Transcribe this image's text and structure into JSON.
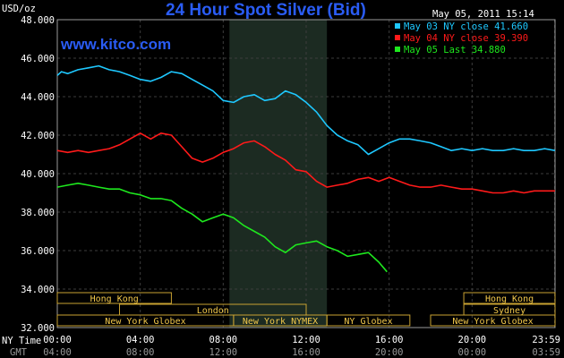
{
  "header": {
    "y_unit": "USD/oz",
    "title": "24 Hour Spot Silver (Bid)",
    "datetime": "May 05, 2011 15:14",
    "site": "www.kitco.com"
  },
  "legend": [
    {
      "label": "May 03 NY close 41.660",
      "color": "#1ec8ff"
    },
    {
      "label": "May 04 NY close 39.390",
      "color": "#ff1a1a"
    },
    {
      "label": "May 05 Last 34.880",
      "color": "#1ee81e"
    }
  ],
  "axis_captions": {
    "ny_time": "NY Time",
    "gmt": "GMT"
  },
  "markets": [
    {
      "label": "Hong Kong",
      "start": -0.5,
      "end": 5.5
    },
    {
      "label": "London",
      "start": 3.0,
      "end": 12.0
    },
    {
      "label": "New York Globex",
      "start": 0.0,
      "end": 8.5
    },
    {
      "label": "New York NYMEX",
      "start": 8.5,
      "end": 13.0
    },
    {
      "label": "NY Globex",
      "start": 13.0,
      "end": 17.0
    },
    {
      "label": "Hong Kong",
      "start": 19.6,
      "end": 24.0
    },
    {
      "label": "Sydney",
      "start": 19.6,
      "end": 24.0
    },
    {
      "label": "New York Globex",
      "start": 18.0,
      "end": 24.0
    }
  ],
  "chart_data": {
    "type": "line",
    "title": "24 Hour Spot Silver (Bid)",
    "ylabel": "USD/oz",
    "xlim": [
      0,
      24
    ],
    "ylim": [
      32,
      48
    ],
    "yticks": [
      "32.000",
      "34.000",
      "36.000",
      "38.000",
      "40.000",
      "42.000",
      "44.000",
      "46.000",
      "48.000"
    ],
    "xticks": [
      0,
      4,
      8,
      12,
      16,
      20,
      23.98
    ],
    "xtick_labels_ny": [
      "00:00",
      "04:00",
      "08:00",
      "12:00",
      "16:00",
      "20:00",
      "23:59"
    ],
    "xtick_labels_gmt": [
      "04:00",
      "08:00",
      "12:00",
      "16:00",
      "20:00",
      "00:00",
      "03:59"
    ],
    "shaded_region": [
      8.3,
      13.0
    ],
    "grid": true,
    "series": [
      {
        "name": "May 03 NY close 41.660",
        "color": "#1ec8ff",
        "x": [
          0.0,
          0.2,
          0.5,
          1.0,
          1.5,
          2.0,
          2.5,
          3.0,
          3.5,
          4.0,
          4.5,
          5.0,
          5.5,
          6.0,
          6.5,
          7.0,
          7.5,
          8.0,
          8.5,
          9.0,
          9.5,
          10.0,
          10.5,
          11.0,
          11.5,
          12.0,
          12.5,
          13.0,
          13.5,
          14.0,
          14.5,
          15.0,
          15.5,
          16.0,
          16.5,
          17.0,
          17.5,
          18.0,
          18.5,
          19.0,
          19.5,
          20.0,
          20.5,
          21.0,
          21.5,
          22.0,
          22.5,
          23.0,
          23.5,
          24.0
        ],
        "y": [
          45.1,
          45.3,
          45.2,
          45.4,
          45.5,
          45.6,
          45.4,
          45.3,
          45.1,
          44.9,
          44.8,
          45.0,
          45.3,
          45.2,
          44.9,
          44.6,
          44.3,
          43.8,
          43.7,
          44.0,
          44.1,
          43.8,
          43.9,
          44.3,
          44.1,
          43.7,
          43.2,
          42.5,
          42.0,
          41.7,
          41.5,
          41.0,
          41.3,
          41.6,
          41.8,
          41.8,
          41.7,
          41.6,
          41.4,
          41.2,
          41.3,
          41.2,
          41.3,
          41.2,
          41.2,
          41.3,
          41.2,
          41.2,
          41.3,
          41.2
        ]
      },
      {
        "name": "May 04 NY close 39.390",
        "color": "#ff1a1a",
        "x": [
          0.0,
          0.5,
          1.0,
          1.5,
          2.0,
          2.5,
          3.0,
          3.5,
          4.0,
          4.5,
          5.0,
          5.5,
          6.0,
          6.5,
          7.0,
          7.5,
          8.0,
          8.5,
          9.0,
          9.5,
          10.0,
          10.5,
          11.0,
          11.5,
          12.0,
          12.5,
          13.0,
          13.5,
          14.0,
          14.5,
          15.0,
          15.5,
          16.0,
          16.5,
          17.0,
          17.5,
          18.0,
          18.5,
          19.0,
          19.5,
          20.0,
          20.5,
          21.0,
          21.5,
          22.0,
          22.5,
          23.0,
          23.5,
          24.0
        ],
        "y": [
          41.2,
          41.1,
          41.2,
          41.1,
          41.2,
          41.3,
          41.5,
          41.8,
          42.1,
          41.8,
          42.1,
          42.0,
          41.4,
          40.8,
          40.6,
          40.8,
          41.1,
          41.3,
          41.6,
          41.7,
          41.4,
          41.0,
          40.7,
          40.2,
          40.1,
          39.6,
          39.3,
          39.4,
          39.5,
          39.7,
          39.8,
          39.6,
          39.8,
          39.6,
          39.4,
          39.3,
          39.3,
          39.4,
          39.3,
          39.2,
          39.2,
          39.1,
          39.0,
          39.0,
          39.1,
          39.0,
          39.1,
          39.1,
          39.1
        ]
      },
      {
        "name": "May 05 Last 34.880",
        "color": "#1ee81e",
        "x": [
          0.0,
          0.5,
          1.0,
          1.5,
          2.0,
          2.5,
          3.0,
          3.5,
          4.0,
          4.5,
          5.0,
          5.5,
          6.0,
          6.5,
          7.0,
          7.5,
          8.0,
          8.5,
          9.0,
          9.5,
          10.0,
          10.5,
          11.0,
          11.5,
          12.0,
          12.5,
          13.0,
          13.5,
          14.0,
          14.5,
          15.0,
          15.5,
          15.9
        ],
        "y": [
          39.3,
          39.4,
          39.5,
          39.4,
          39.3,
          39.2,
          39.2,
          39.0,
          38.9,
          38.7,
          38.7,
          38.6,
          38.2,
          37.9,
          37.5,
          37.7,
          37.9,
          37.7,
          37.3,
          37.0,
          36.7,
          36.2,
          35.9,
          36.3,
          36.4,
          36.5,
          36.2,
          36.0,
          35.7,
          35.8,
          35.9,
          35.4,
          34.9
        ]
      }
    ]
  }
}
